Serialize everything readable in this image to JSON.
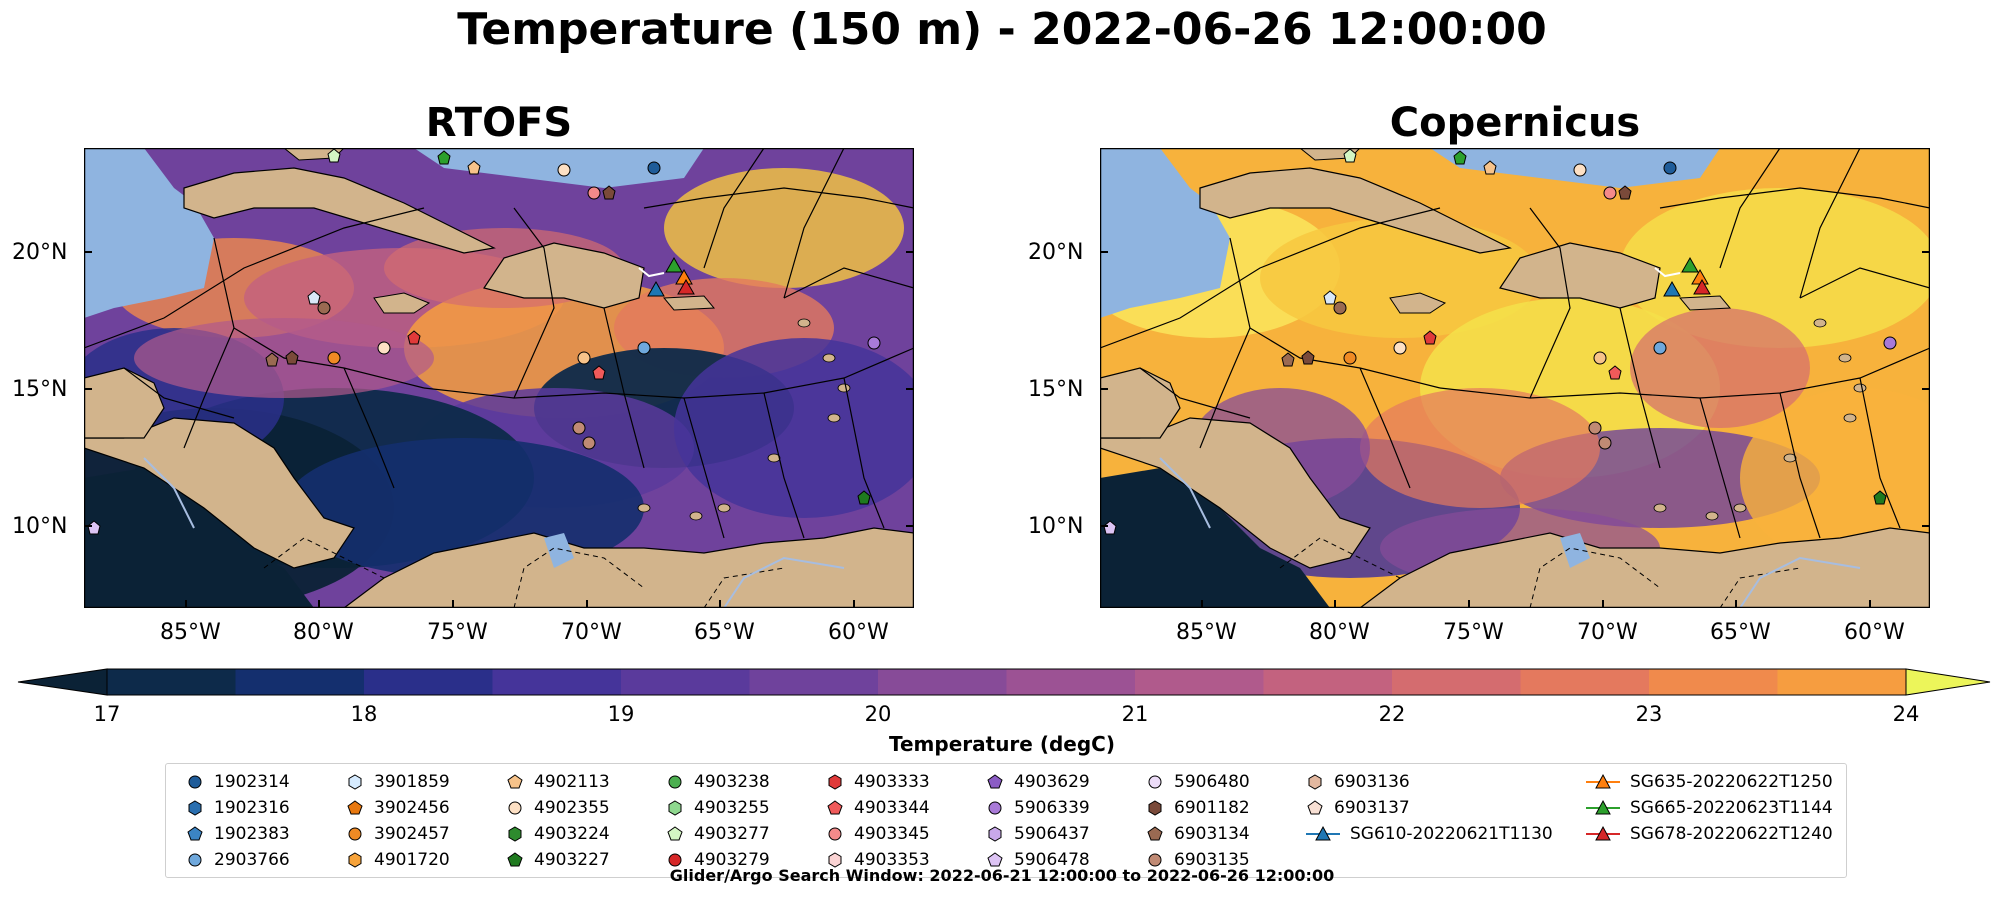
{
  "title": "Temperature (150 m) - 2022-06-26 12:00:00",
  "panels": [
    {
      "name": "RTOFS",
      "palette": "rtofs"
    },
    {
      "name": "Copernicus",
      "palette": "copernicus"
    }
  ],
  "lat_labels": [
    "20°N",
    "15°N",
    "10°N"
  ],
  "lon_labels": [
    "85°W",
    "80°W",
    "75°W",
    "70°W",
    "65°W",
    "60°W"
  ],
  "colorbar": {
    "label": "Temperature (degC)",
    "ticks": [
      "17",
      "18",
      "19",
      "20",
      "21",
      "22",
      "23",
      "24"
    ],
    "min": 17,
    "max": 24,
    "step": 0.5,
    "extend": "both",
    "colors": [
      "#0d2a4a",
      "#142f6e",
      "#2a2f8a",
      "#45349a",
      "#5a3a9c",
      "#6f429c",
      "#874b98",
      "#9c5294",
      "#b05a8c",
      "#c3627f",
      "#d46c6f",
      "#e4795e",
      "#f08a4c",
      "#f69d40",
      "#f9b23c",
      "#f7c83f",
      "#f5dc45"
    ],
    "under_color": "#0b2236",
    "over_color": "#ecf55a"
  },
  "legend": {
    "columns": [
      [
        {
          "id": "1902314",
          "marker": "circle",
          "color": "#1f5c99"
        },
        {
          "id": "1902316",
          "marker": "hexagon",
          "color": "#2a6fb0"
        },
        {
          "id": "1902383",
          "marker": "pentagon",
          "color": "#3b84c4"
        },
        {
          "id": "2903766",
          "marker": "circle",
          "color": "#6fa8dc"
        }
      ],
      [
        {
          "id": "3901859",
          "marker": "hexagon",
          "color": "#d6ebff"
        },
        {
          "id": "3902456",
          "marker": "pentagon",
          "color": "#e8780f"
        },
        {
          "id": "3902457",
          "marker": "circle",
          "color": "#f08a24"
        },
        {
          "id": "4901720",
          "marker": "hexagon",
          "color": "#f7a33a"
        }
      ],
      [
        {
          "id": "4902113",
          "marker": "pentagon",
          "color": "#f7c38a"
        },
        {
          "id": "4902355",
          "marker": "circle",
          "color": "#fde0c4"
        },
        {
          "id": "4903224",
          "marker": "hexagon",
          "color": "#2e8b2e"
        },
        {
          "id": "4903227",
          "marker": "pentagon",
          "color": "#1f7a1f"
        }
      ],
      [
        {
          "id": "4903238",
          "marker": "circle",
          "color": "#4caf50"
        },
        {
          "id": "4903255",
          "marker": "hexagon",
          "color": "#8fd88f"
        },
        {
          "id": "4903277",
          "marker": "pentagon",
          "color": "#d4f7c4"
        },
        {
          "id": "4903279",
          "marker": "circle",
          "color": "#d62728"
        }
      ],
      [
        {
          "id": "4903333",
          "marker": "hexagon",
          "color": "#e03a3a"
        },
        {
          "id": "4903344",
          "marker": "pentagon",
          "color": "#f05a5a"
        },
        {
          "id": "4903345",
          "marker": "circle",
          "color": "#f48a8a"
        },
        {
          "id": "4903353",
          "marker": "hexagon",
          "color": "#fbd4d4"
        }
      ],
      [
        {
          "id": "4903629",
          "marker": "pentagon",
          "color": "#8b5cc4"
        },
        {
          "id": "5906339",
          "marker": "circle",
          "color": "#a97ad8"
        },
        {
          "id": "5906437",
          "marker": "hexagon",
          "color": "#c9a8ea"
        },
        {
          "id": "5906478",
          "marker": "pentagon",
          "color": "#ddc4f4"
        }
      ],
      [
        {
          "id": "5906480",
          "marker": "circle",
          "color": "#ecdcf8"
        },
        {
          "id": "6901182",
          "marker": "hexagon",
          "color": "#7a4a3a"
        },
        {
          "id": "6903134",
          "marker": "pentagon",
          "color": "#9a6a52"
        },
        {
          "id": "6903135",
          "marker": "circle",
          "color": "#c08a74"
        }
      ],
      [
        {
          "id": "6903136",
          "marker": "hexagon",
          "color": "#e3b8a0"
        },
        {
          "id": "6903137",
          "marker": "pentagon",
          "color": "#f8e0d4"
        },
        {
          "id": "SG610-20220621T1130",
          "marker": "triangle",
          "color": "#1f77b4",
          "line": true
        }
      ],
      [
        {
          "id": "SG635-20220622T1250",
          "marker": "triangle",
          "color": "#ff7f0e",
          "line": true
        },
        {
          "id": "SG665-20220623T1144",
          "marker": "triangle",
          "color": "#2ca02c",
          "line": true
        },
        {
          "id": "SG678-20220622T1240",
          "marker": "triangle",
          "color": "#d62728",
          "line": true
        }
      ]
    ]
  },
  "footer": "Glider/Argo Search Window: 2022-06-21 12:00:00 to 2022-06-26 12:00:00"
}
